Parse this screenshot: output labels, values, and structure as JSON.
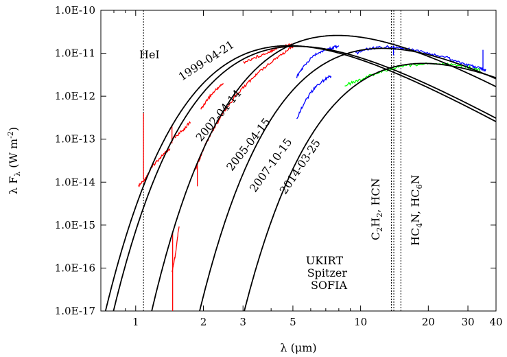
{
  "chart_data": {
    "type": "line",
    "xlabel": "λ (μm)",
    "ylabel": "λ F_λ (W m^-2)",
    "x_scale": "log",
    "y_scale": "log",
    "xlim": [
      0.7,
      40
    ],
    "ylim": [
      1e-17,
      1e-10
    ],
    "x_ticks": [
      {
        "value": 1,
        "label": "1"
      },
      {
        "value": 2,
        "label": "2"
      },
      {
        "value": 3,
        "label": "3"
      },
      {
        "value": 5,
        "label": "5"
      },
      {
        "value": 10,
        "label": "10"
      },
      {
        "value": 20,
        "label": "20"
      },
      {
        "value": 30,
        "label": "30"
      },
      {
        "value": 40,
        "label": "40"
      }
    ],
    "y_ticks": [
      {
        "value": 1e-10,
        "label": "1.0E-10"
      },
      {
        "value": 1e-11,
        "label": "1.0E-11"
      },
      {
        "value": 1e-12,
        "label": "1.0E-12"
      },
      {
        "value": 1e-13,
        "label": "1.0E-13"
      },
      {
        "value": 1e-14,
        "label": "1.0E-14"
      },
      {
        "value": 1e-15,
        "label": "1.0E-15"
      },
      {
        "value": 1e-16,
        "label": "1.0E-16"
      },
      {
        "value": 1e-17,
        "label": "1.0E-17"
      }
    ],
    "grid": false,
    "legend_position": "bottom-center",
    "blackbody_fits": [
      {
        "name": "1999-04-21",
        "peak_wavelength": 4.8,
        "peak_flux": 1.5e-11
      },
      {
        "name": "2002-04-14",
        "peak_wavelength": 5.2,
        "peak_flux": 1.45e-11
      },
      {
        "name": "2005-04-15",
        "peak_wavelength": 7.9,
        "peak_flux": 2.6e-11
      },
      {
        "name": "2007-10-15",
        "peak_wavelength": 12.5,
        "peak_flux": 1.3e-11
      },
      {
        "name": "2014-03-25",
        "peak_wavelength": 19.0,
        "peak_flux": 5.8e-12
      }
    ],
    "series": [
      {
        "name": "UKIRT",
        "color": "#ff0000",
        "segments": [
          [
            [
              1.03,
              8e-15
            ],
            [
              1.1,
              1.2e-14
            ],
            [
              1.2,
              2.5e-14
            ],
            [
              1.3,
              4e-14
            ],
            [
              1.42,
              6e-14
            ]
          ],
          [
            [
              1.45,
              1e-13
            ],
            [
              1.6,
              1.5e-13
            ],
            [
              1.75,
              2.5e-13
            ]
          ],
          [
            [
              1.95,
              5e-13
            ],
            [
              2.1,
              9e-13
            ],
            [
              2.3,
              1.5e-12
            ],
            [
              2.45,
              2e-12
            ]
          ],
          [
            [
              3.0,
              6e-12
            ],
            [
              3.4,
              8e-12
            ],
            [
              3.8,
              1e-11
            ],
            [
              4.2,
              1.3e-11
            ],
            [
              4.6,
              1.5e-11
            ],
            [
              5.0,
              1.55e-11
            ]
          ],
          [
            [
              1.45,
              8e-17
            ],
            [
              1.5,
              2e-16
            ],
            [
              1.56,
              1e-15
            ]
          ],
          [
            [
              1.85,
              2e-14
            ],
            [
              2.0,
              6e-14
            ],
            [
              2.2,
              1.6e-13
            ],
            [
              2.45,
              4e-13
            ],
            [
              2.8,
              1.1e-12
            ],
            [
              3.2,
              2.2e-12
            ],
            [
              3.6,
              4e-12
            ],
            [
              4.1,
              7e-12
            ],
            [
              4.6,
              1.05e-11
            ],
            [
              5.0,
              1.4e-11
            ]
          ]
        ],
        "spikes": [
          {
            "x": 1.083,
            "from": 1.2e-14,
            "to": 4e-13
          },
          {
            "x": 1.45,
            "from": 8e-14,
            "to": 2e-13
          },
          {
            "x": 1.46,
            "from": 1e-17,
            "to": 7e-16
          },
          {
            "x": 1.88,
            "from": 8e-15,
            "to": 3e-14
          }
        ]
      },
      {
        "name": "Spitzer",
        "color": "#0000ff",
        "segments": [
          [
            [
              5.2,
              2.8e-12
            ],
            [
              5.6,
              5e-12
            ],
            [
              6.2,
              9e-12
            ],
            [
              6.8,
              1.15e-11
            ],
            [
              7.4,
              1.3e-11
            ],
            [
              8.0,
              1.5e-11
            ]
          ],
          [
            [
              5.2,
              3e-13
            ],
            [
              5.6,
              7e-13
            ],
            [
              6.2,
              1.5e-12
            ],
            [
              6.8,
              2.3e-12
            ],
            [
              7.4,
              3e-12
            ]
          ],
          [
            [
              9.5,
              1e-11
            ],
            [
              11,
              1.3e-11
            ],
            [
              13,
              1.4e-11
            ],
            [
              15,
              1.3e-11
            ],
            [
              17,
              1.2e-11
            ],
            [
              20,
              1e-11
            ],
            [
              24,
              8e-12
            ],
            [
              28,
              6e-12
            ],
            [
              31,
              5e-12
            ],
            [
              34,
              4.5e-12
            ],
            [
              36,
              4e-12
            ]
          ]
        ],
        "spikes": [
          {
            "x": 14.0,
            "from": 9e-12,
            "to": 1.5e-11
          },
          {
            "x": 35.0,
            "from": 4e-12,
            "to": 1.2e-11
          }
        ]
      },
      {
        "name": "SOFIA",
        "color": "#00ff00",
        "segments": [
          [
            [
              8.5,
              1.8e-12
            ],
            [
              9.5,
              2.2e-12
            ],
            [
              11,
              3e-12
            ],
            [
              13,
              4e-12
            ],
            [
              15,
              5e-12
            ],
            [
              18,
              5.5e-12
            ],
            [
              21,
              5.7e-12
            ],
            [
              25,
              5.5e-12
            ],
            [
              30,
              4.8e-12
            ],
            [
              34,
              4e-12
            ]
          ]
        ],
        "spikes": []
      }
    ],
    "vertical_lines": [
      {
        "x": 1.083,
        "label": "HeI"
      },
      {
        "x": 13.7,
        "label": "C2H2, HCN"
      },
      {
        "x": 14.05,
        "label": ""
      },
      {
        "x": 15.1,
        "label": "HC4N, HC6N"
      }
    ]
  }
}
